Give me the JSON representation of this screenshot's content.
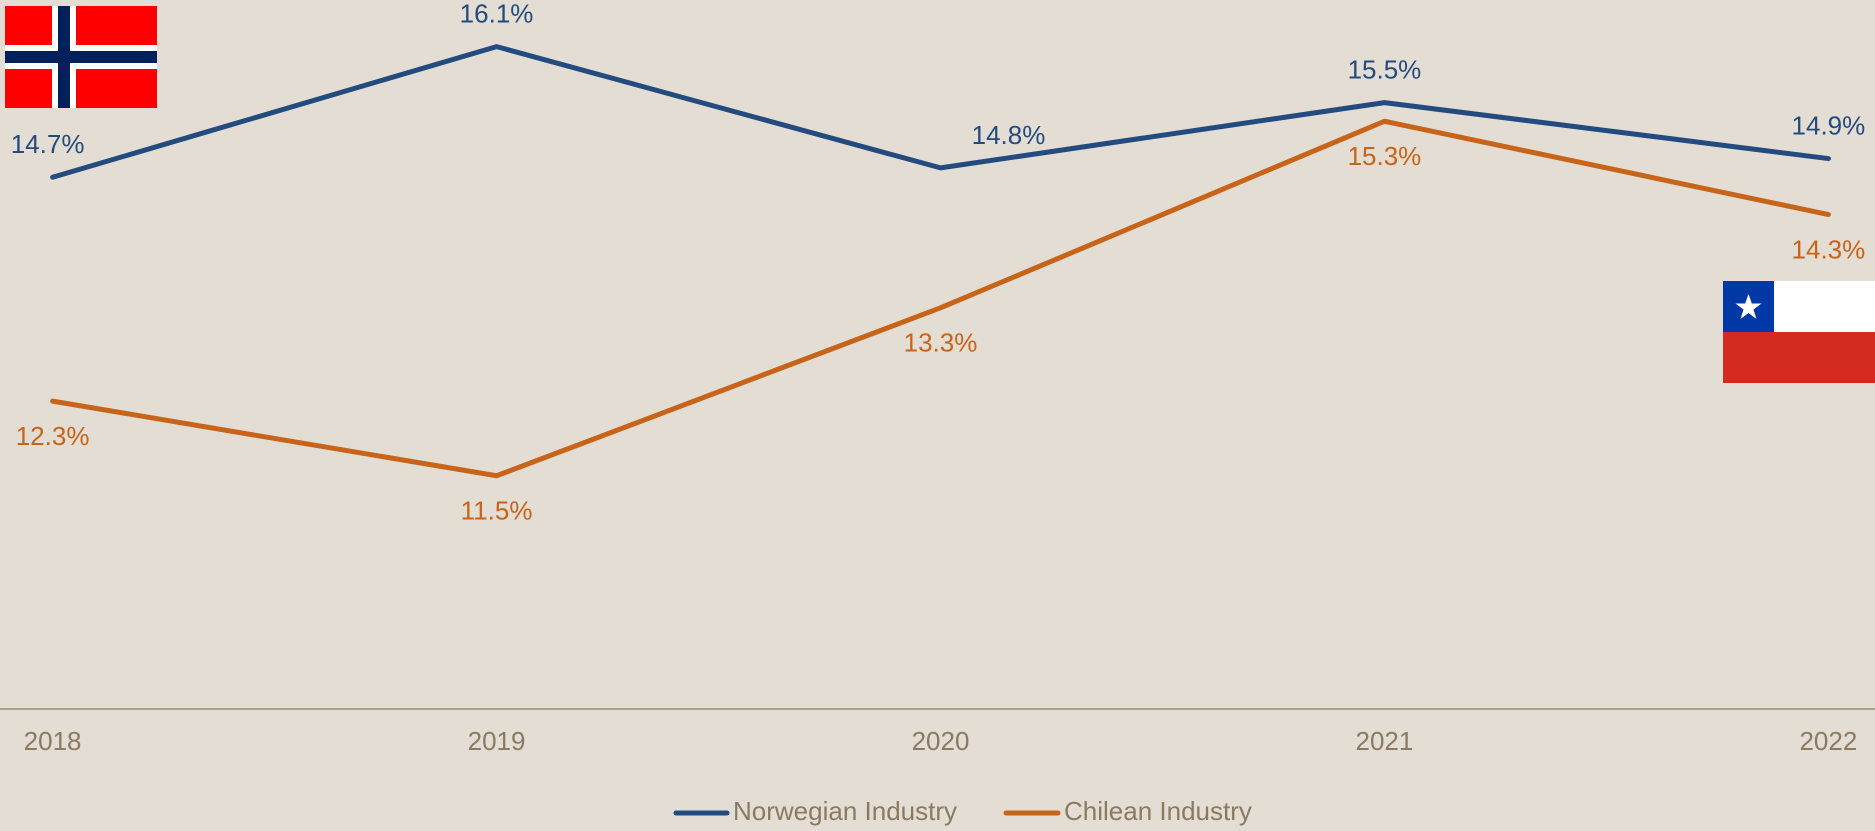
{
  "chart_data": {
    "type": "line",
    "categories": [
      "2018",
      "2019",
      "2020",
      "2021",
      "2022"
    ],
    "series": [
      {
        "name": "Norwegian Industry",
        "color": "#234b7f",
        "values": [
          14.7,
          16.1,
          14.8,
          15.5,
          14.9
        ],
        "value_labels": [
          "14.7%",
          "16.1%",
          "14.8%",
          "15.5%",
          "14.9%"
        ]
      },
      {
        "name": "Chilean Industry",
        "color": "#c8641a",
        "values": [
          12.3,
          11.5,
          13.3,
          15.3,
          14.3
        ],
        "value_labels": [
          "12.3%",
          "11.5%",
          "13.3%",
          "15.3%",
          "14.3%"
        ]
      }
    ],
    "ylim": [
      9,
      16.5
    ],
    "grid": false,
    "legend": "bottom"
  }
}
